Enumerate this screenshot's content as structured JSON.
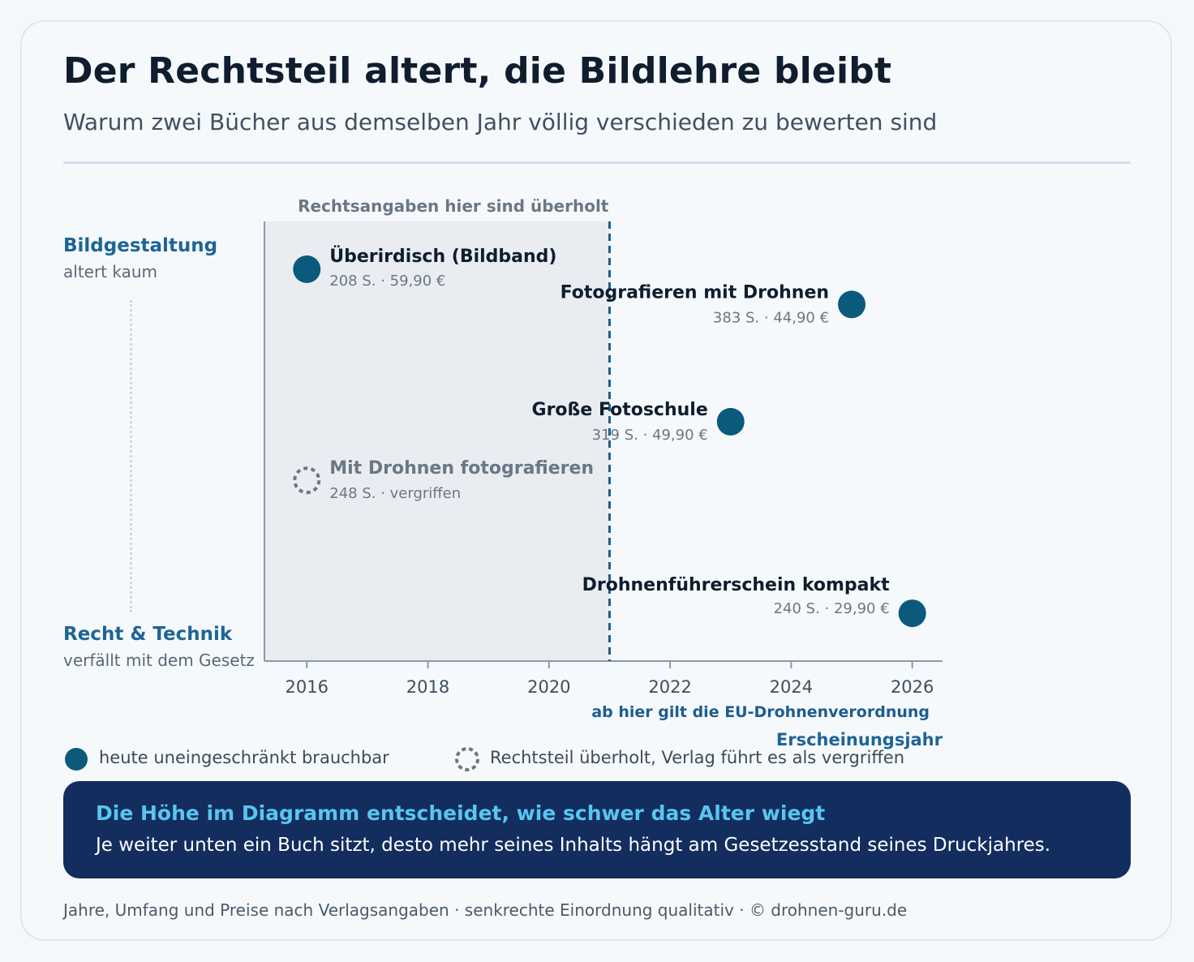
{
  "header": {
    "title": "Der Rechtsteil altert, die Bildlehre bleibt",
    "subtitle": "Warum zwei Bücher aus demselben Jahr völlig verschieden zu bewerten sind"
  },
  "y_axis": {
    "top_label": "Bildgestaltung",
    "top_sub": "altert kaum",
    "bottom_label": "Recht & Technik",
    "bottom_sub": "verfällt mit dem Gesetz"
  },
  "chart_data": {
    "type": "scatter",
    "title": "Der Rechtsteil altert, die Bildlehre bleibt",
    "xlabel": "Erscheinungsjahr",
    "xlim": [
      2015.3,
      2026.5
    ],
    "x_ticks": [
      2016,
      2018,
      2020,
      2022,
      2024,
      2026
    ],
    "y_scale": "qualitativ (oben: Bildgestaltung, unten: Recht & Technik)",
    "ylim": [
      0,
      1
    ],
    "shaded_region": {
      "x_from": 2015.3,
      "x_to": 2021,
      "label": "Rechtsangaben hier sind überholt"
    },
    "reference_line": {
      "x": 2021,
      "label": "ab hier gilt die EU-Drohnenverordnung"
    },
    "points": [
      {
        "title": "Überirdisch (Bildband)",
        "detail": "208 S. · 59,90 €",
        "x": 2016,
        "y": 0.94,
        "status": "available"
      },
      {
        "title": "Fotografieren mit Drohnen",
        "detail": "383 S. · 44,90 €",
        "x": 2025,
        "y": 0.85,
        "status": "available"
      },
      {
        "title": "Große Fotoschule",
        "detail": "319 S. · 49,90 €",
        "x": 2023,
        "y": 0.55,
        "status": "available"
      },
      {
        "title": "Mit Drohnen fotografieren",
        "detail": "248 S. · vergriffen",
        "x": 2016,
        "y": 0.4,
        "status": "out_of_print"
      },
      {
        "title": "Drohnenführerschein kompakt",
        "detail": "240 S. · 29,90 €",
        "x": 2026,
        "y": 0.06,
        "status": "available"
      }
    ]
  },
  "legend": {
    "available": "heute uneingeschränkt brauchbar",
    "out_of_print": "Rechtsteil überholt, Verlag führt es als vergriffen"
  },
  "colors": {
    "available": "#0b5a7c",
    "out_of_print": "#6a7785",
    "reference_line": "#1d5d8e",
    "shade": "#e9edf1"
  },
  "callout": {
    "title": "Die Höhe im Diagramm entscheidet, wie schwer das Alter wiegt",
    "body": "Je weiter unten ein Buch sitzt, desto mehr seines Inhalts hängt am Gesetzesstand seines Druckjahres."
  },
  "footer": "Jahre, Umfang und Preise nach Verlagsangaben · senkrechte Einordnung qualitativ · © drohnen-guru.de"
}
